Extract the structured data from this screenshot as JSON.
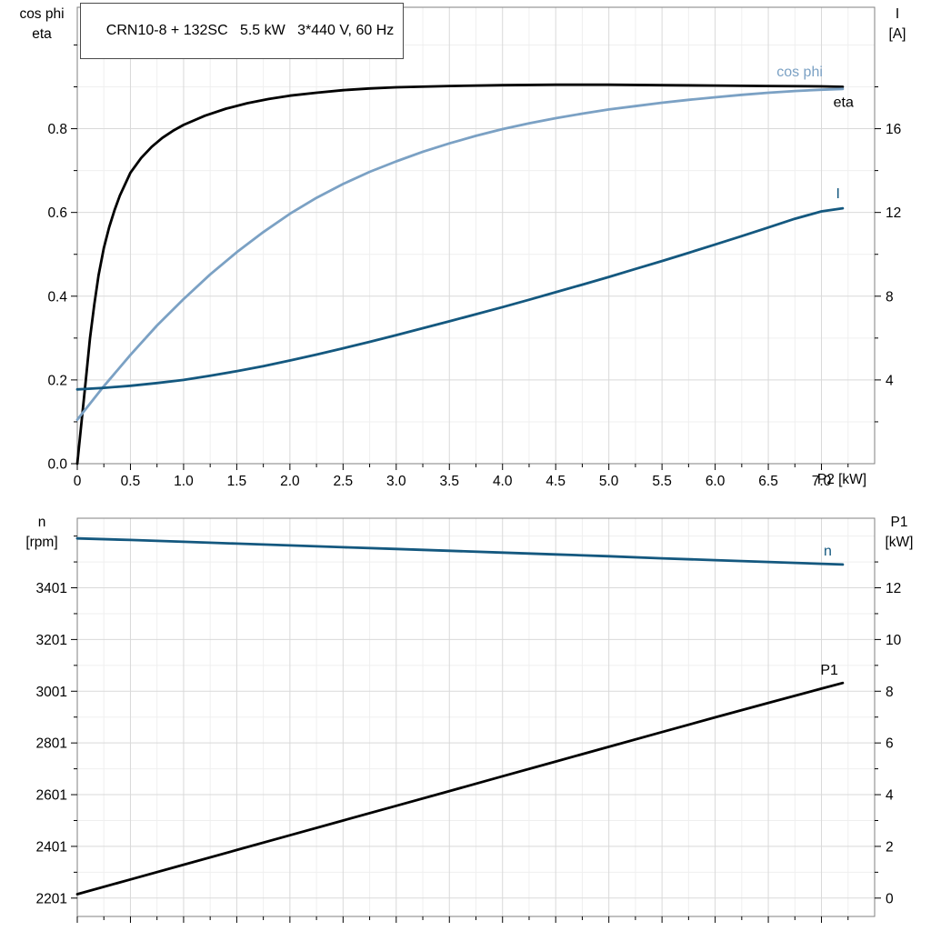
{
  "title": "CRN10-8 + 132SC   5.5 kW   3*440 V, 60 Hz",
  "colors": {
    "background": "#ffffff",
    "grid_major": "#d9d9d9",
    "grid_minor": "#efefef",
    "frame": "#808080",
    "tick": "#000000",
    "eta": "#000000",
    "cos_phi": "#7ba1c4",
    "current": "#14587f",
    "speed": "#14587f",
    "p1": "#000000"
  },
  "chart_data": [
    {
      "type": "line",
      "id": "motor-top",
      "title": "CRN10-8 + 132SC   5.5 kW   3*440 V, 60 Hz",
      "xlabel": "P2 [kW]",
      "ylabel_left": [
        "cos phi",
        "eta"
      ],
      "ylabel_right": [
        "I",
        "[A]"
      ],
      "xlim": [
        0,
        7.5
      ],
      "ylim_left": [
        0,
        1.09
      ],
      "ylim_right": [
        0,
        21.8
      ],
      "grid": true,
      "legend_position": "curve-end-labels",
      "xticks": {
        "values": [
          0,
          0.5,
          1,
          1.5,
          2,
          2.5,
          3,
          3.5,
          4,
          4.5,
          5,
          5.5,
          6,
          6.5,
          7
        ],
        "labels": [
          "0",
          "0.5",
          "1.0",
          "1.5",
          "2.0",
          "2.5",
          "3.0",
          "3.5",
          "4.0",
          "4.5",
          "5.0",
          "5.5",
          "6.0",
          "6.5",
          "7.0"
        ]
      },
      "xticks_minor": [
        0.25,
        0.75,
        1.25,
        1.75,
        2.25,
        2.75,
        3.25,
        3.75,
        4.25,
        4.75,
        5.25,
        5.75,
        6.25,
        6.75,
        7.25
      ],
      "yticks_left": {
        "values": [
          0,
          0.2,
          0.4,
          0.6,
          0.8
        ],
        "labels": [
          "0.0",
          "0.2",
          "0.4",
          "0.6",
          "0.8"
        ]
      },
      "yticks_left_minor": [
        0.1,
        0.3,
        0.5,
        0.7,
        0.9,
        1.0
      ],
      "yticks_right": {
        "values": [
          4,
          8,
          12,
          16
        ],
        "labels": [
          "4",
          "8",
          "12",
          "16"
        ]
      },
      "yticks_right_minor": [
        2,
        6,
        10,
        14,
        18
      ],
      "series": [
        {
          "name": "eta",
          "label": "eta",
          "axis": "left",
          "color": "#000000",
          "label_offset": [
            12,
            22
          ],
          "points": [
            [
              0,
              0
            ],
            [
              0.04,
              0.1
            ],
            [
              0.08,
              0.2
            ],
            [
              0.12,
              0.3
            ],
            [
              0.16,
              0.38
            ],
            [
              0.2,
              0.45
            ],
            [
              0.25,
              0.515
            ],
            [
              0.3,
              0.565
            ],
            [
              0.35,
              0.605
            ],
            [
              0.4,
              0.64
            ],
            [
              0.5,
              0.695
            ],
            [
              0.6,
              0.73
            ],
            [
              0.7,
              0.757
            ],
            [
              0.8,
              0.778
            ],
            [
              0.9,
              0.795
            ],
            [
              1.0,
              0.809
            ],
            [
              1.2,
              0.831
            ],
            [
              1.4,
              0.848
            ],
            [
              1.6,
              0.861
            ],
            [
              1.8,
              0.871
            ],
            [
              2.0,
              0.879
            ],
            [
              2.25,
              0.886
            ],
            [
              2.5,
              0.892
            ],
            [
              2.75,
              0.896
            ],
            [
              3.0,
              0.899
            ],
            [
              3.5,
              0.902
            ],
            [
              4.0,
              0.904
            ],
            [
              4.5,
              0.905
            ],
            [
              5.0,
              0.905
            ],
            [
              5.5,
              0.904
            ],
            [
              6.0,
              0.903
            ],
            [
              6.5,
              0.902
            ],
            [
              7.0,
              0.901
            ],
            [
              7.2,
              0.9
            ]
          ]
        },
        {
          "name": "cos phi",
          "label": "cos phi",
          "axis": "left",
          "color": "#7ba1c4",
          "label_offset": [
            -22,
            -14
          ],
          "points": [
            [
              0,
              0.105
            ],
            [
              0.25,
              0.185
            ],
            [
              0.5,
              0.26
            ],
            [
              0.75,
              0.33
            ],
            [
              1.0,
              0.393
            ],
            [
              1.25,
              0.452
            ],
            [
              1.5,
              0.505
            ],
            [
              1.75,
              0.553
            ],
            [
              2.0,
              0.597
            ],
            [
              2.25,
              0.635
            ],
            [
              2.5,
              0.668
            ],
            [
              2.75,
              0.697
            ],
            [
              3.0,
              0.722
            ],
            [
              3.25,
              0.745
            ],
            [
              3.5,
              0.765
            ],
            [
              3.75,
              0.783
            ],
            [
              4.0,
              0.799
            ],
            [
              4.25,
              0.813
            ],
            [
              4.5,
              0.825
            ],
            [
              4.75,
              0.836
            ],
            [
              5.0,
              0.846
            ],
            [
              5.25,
              0.854
            ],
            [
              5.5,
              0.862
            ],
            [
              5.75,
              0.869
            ],
            [
              6.0,
              0.875
            ],
            [
              6.25,
              0.881
            ],
            [
              6.5,
              0.886
            ],
            [
              6.75,
              0.89
            ],
            [
              7.0,
              0.893
            ],
            [
              7.2,
              0.895
            ]
          ]
        },
        {
          "name": "I",
          "label": "I",
          "axis": "right",
          "color": "#14587f",
          "label_offset": [
            -3,
            -11
          ],
          "points": [
            [
              0,
              3.55
            ],
            [
              0.25,
              3.62
            ],
            [
              0.5,
              3.72
            ],
            [
              0.75,
              3.85
            ],
            [
              1.0,
              4.0
            ],
            [
              1.25,
              4.2
            ],
            [
              1.5,
              4.42
            ],
            [
              1.75,
              4.66
            ],
            [
              2.0,
              4.93
            ],
            [
              2.25,
              5.21
            ],
            [
              2.5,
              5.51
            ],
            [
              2.75,
              5.82
            ],
            [
              3.0,
              6.14
            ],
            [
              3.25,
              6.47
            ],
            [
              3.5,
              6.8
            ],
            [
              3.75,
              7.14
            ],
            [
              4.0,
              7.48
            ],
            [
              4.25,
              7.83
            ],
            [
              4.5,
              8.19
            ],
            [
              4.75,
              8.55
            ],
            [
              5.0,
              8.92
            ],
            [
              5.25,
              9.3
            ],
            [
              5.5,
              9.68
            ],
            [
              5.75,
              10.07
            ],
            [
              6.0,
              10.47
            ],
            [
              6.25,
              10.87
            ],
            [
              6.5,
              11.28
            ],
            [
              6.75,
              11.7
            ],
            [
              7.0,
              12.05
            ],
            [
              7.2,
              12.2
            ]
          ]
        }
      ]
    },
    {
      "type": "line",
      "id": "motor-bottom",
      "title": "",
      "xlabel": "",
      "ylabel_left": [
        "n",
        "[rpm]"
      ],
      "ylabel_right": [
        "P1",
        "[kW]"
      ],
      "xlim": [
        0,
        7.5
      ],
      "ylim_left": [
        2130,
        3670
      ],
      "ylim_right": [
        -0.71,
        14.69
      ],
      "grid": true,
      "legend_position": "curve-end-labels",
      "xticks": {
        "values": [
          0,
          0.5,
          1,
          1.5,
          2,
          2.5,
          3,
          3.5,
          4,
          4.5,
          5,
          5.5,
          6,
          6.5,
          7
        ],
        "labels": [
          "",
          "",
          "",
          "",
          "",
          "",
          "",
          "",
          "",
          "",
          "",
          "",
          "",
          "",
          ""
        ]
      },
      "xticks_minor": [
        0.25,
        0.75,
        1.25,
        1.75,
        2.25,
        2.75,
        3.25,
        3.75,
        4.25,
        4.75,
        5.25,
        5.75,
        6.25,
        6.75,
        7.25
      ],
      "yticks_left": {
        "values": [
          2201,
          2401,
          2601,
          2801,
          3001,
          3201,
          3401
        ],
        "labels": [
          "2201",
          "2401",
          "2601",
          "2801",
          "3001",
          "3201",
          "3401"
        ]
      },
      "yticks_left_minor": [
        2301,
        2501,
        2701,
        2901,
        3101,
        3301,
        3501,
        3601
      ],
      "yticks_right": {
        "values": [
          0,
          2,
          4,
          6,
          8,
          10,
          12
        ],
        "labels": [
          "0",
          "2",
          "4",
          "6",
          "8",
          "10",
          "12"
        ]
      },
      "yticks_right_minor": [
        1,
        3,
        5,
        7,
        9,
        11,
        13
      ],
      "series": [
        {
          "name": "n",
          "label": "n",
          "axis": "left",
          "color": "#14587f",
          "label_offset": [
            -12,
            -10
          ],
          "points": [
            [
              0,
              3592
            ],
            [
              0.5,
              3586
            ],
            [
              1.0,
              3579
            ],
            [
              1.5,
              3572
            ],
            [
              2.0,
              3565
            ],
            [
              2.5,
              3558
            ],
            [
              3.0,
              3551
            ],
            [
              3.5,
              3544
            ],
            [
              4.0,
              3537
            ],
            [
              4.5,
              3530
            ],
            [
              5.0,
              3523
            ],
            [
              5.5,
              3515
            ],
            [
              6.0,
              3508
            ],
            [
              6.5,
              3501
            ],
            [
              7.0,
              3494
            ],
            [
              7.2,
              3491
            ]
          ]
        },
        {
          "name": "P1",
          "label": "P1",
          "axis": "right",
          "color": "#000000",
          "label_offset": [
            -5,
            -9
          ],
          "points": [
            [
              0,
              0.15
            ],
            [
              0.5,
              0.72
            ],
            [
              1.0,
              1.29
            ],
            [
              1.5,
              1.86
            ],
            [
              2.0,
              2.43
            ],
            [
              2.5,
              3.0
            ],
            [
              3.0,
              3.57
            ],
            [
              3.5,
              4.14
            ],
            [
              4.0,
              4.71
            ],
            [
              4.5,
              5.28
            ],
            [
              5.0,
              5.85
            ],
            [
              5.5,
              6.42
            ],
            [
              6.0,
              6.99
            ],
            [
              6.5,
              7.55
            ],
            [
              7.0,
              8.1
            ],
            [
              7.2,
              8.32
            ]
          ]
        }
      ]
    }
  ]
}
